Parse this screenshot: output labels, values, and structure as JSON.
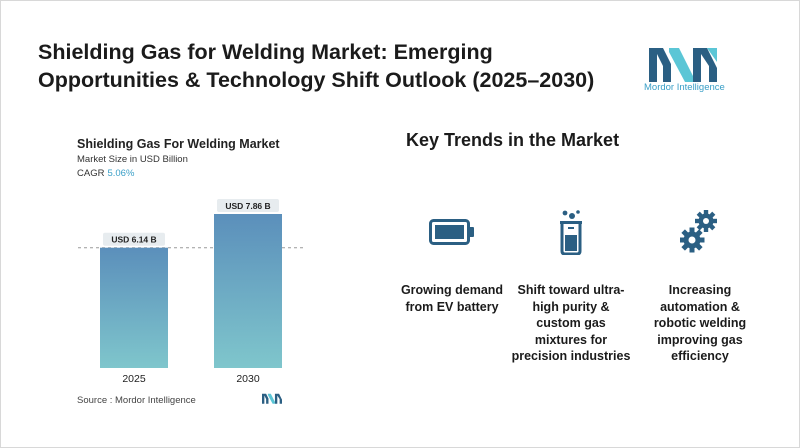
{
  "header": {
    "title": "Shielding Gas for Welding Market: Emerging Opportunities & Technology Shift Outlook (2025–2030)"
  },
  "logo": {
    "text": "Mordor Intelligence",
    "colors": [
      "#2b5f83",
      "#5bc6d6"
    ]
  },
  "chart_card": {
    "title": "Shielding Gas For Welding Market",
    "subtitle": "Market Size in USD Billion",
    "cagr_label": "CAGR",
    "cagr_value": "5.06%",
    "source": "Source :  Mordor Intelligence"
  },
  "chart_data": {
    "type": "bar",
    "categories": [
      "2025",
      "2030"
    ],
    "values": [
      6.14,
      7.86
    ],
    "data_labels": [
      "USD 6.14 B",
      "USD 7.86 B"
    ],
    "ylim": [
      0,
      7.86
    ],
    "grid": false,
    "reference_line": "dashed line at the 2025 value",
    "colors": {
      "bar_top": "#5b8fbb",
      "bar_bottom": "#7fc6cc",
      "label_bg": "#e7ecef"
    }
  },
  "trends": {
    "title": "Key Trends in the Market",
    "items": [
      {
        "icon": "battery-icon",
        "label": "Growing demand from EV battery"
      },
      {
        "icon": "beaker-icon",
        "label": "Shift toward ultra-high purity & custom gas mixtures for precision industries"
      },
      {
        "icon": "gears-icon",
        "label": "Increasing automation & robotic welding improving gas efficiency"
      }
    ],
    "icon_color": "#2b5f83"
  }
}
